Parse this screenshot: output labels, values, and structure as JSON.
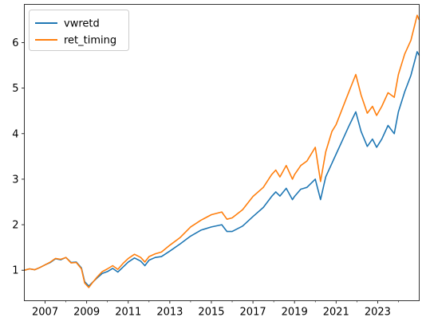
{
  "chart_data": {
    "type": "line",
    "title": "",
    "xlabel": "",
    "ylabel": "",
    "grid": false,
    "legend_position": "top-left",
    "xlim": [
      2006.0,
      2025.0
    ],
    "ylim": [
      0.33,
      6.84
    ],
    "x_ticks": [
      2007,
      2009,
      2011,
      2013,
      2015,
      2017,
      2019,
      2021,
      2023
    ],
    "x_minor_ticks": [
      2008,
      2010,
      2012,
      2014,
      2016,
      2018,
      2020,
      2022,
      2024
    ],
    "y_ticks": [
      1,
      2,
      3,
      4,
      5,
      6
    ],
    "series": [
      {
        "name": "vwretd",
        "color": "#1f77b4",
        "points": [
          [
            2006.0,
            1.0
          ],
          [
            2006.25,
            1.03
          ],
          [
            2006.5,
            1.01
          ],
          [
            2006.75,
            1.06
          ],
          [
            2007.0,
            1.12
          ],
          [
            2007.25,
            1.17
          ],
          [
            2007.5,
            1.25
          ],
          [
            2007.75,
            1.23
          ],
          [
            2008.0,
            1.28
          ],
          [
            2008.25,
            1.17
          ],
          [
            2008.5,
            1.18
          ],
          [
            2008.75,
            1.05
          ],
          [
            2008.9,
            0.75
          ],
          [
            2009.1,
            0.65
          ],
          [
            2009.25,
            0.72
          ],
          [
            2009.5,
            0.83
          ],
          [
            2009.75,
            0.93
          ],
          [
            2010.0,
            0.97
          ],
          [
            2010.25,
            1.04
          ],
          [
            2010.5,
            0.96
          ],
          [
            2010.75,
            1.07
          ],
          [
            2011.0,
            1.18
          ],
          [
            2011.3,
            1.27
          ],
          [
            2011.6,
            1.2
          ],
          [
            2011.8,
            1.1
          ],
          [
            2012.0,
            1.22
          ],
          [
            2012.3,
            1.28
          ],
          [
            2012.6,
            1.3
          ],
          [
            2013.0,
            1.42
          ],
          [
            2013.5,
            1.58
          ],
          [
            2014.0,
            1.75
          ],
          [
            2014.5,
            1.88
          ],
          [
            2015.0,
            1.95
          ],
          [
            2015.5,
            2.0
          ],
          [
            2015.75,
            1.85
          ],
          [
            2016.0,
            1.85
          ],
          [
            2016.5,
            1.97
          ],
          [
            2017.0,
            2.18
          ],
          [
            2017.5,
            2.38
          ],
          [
            2017.9,
            2.62
          ],
          [
            2018.1,
            2.72
          ],
          [
            2018.3,
            2.63
          ],
          [
            2018.6,
            2.8
          ],
          [
            2018.9,
            2.55
          ],
          [
            2019.0,
            2.62
          ],
          [
            2019.3,
            2.78
          ],
          [
            2019.6,
            2.82
          ],
          [
            2020.0,
            3.0
          ],
          [
            2020.25,
            2.55
          ],
          [
            2020.5,
            3.05
          ],
          [
            2020.8,
            3.35
          ],
          [
            2021.0,
            3.55
          ],
          [
            2021.3,
            3.85
          ],
          [
            2021.6,
            4.15
          ],
          [
            2021.95,
            4.48
          ],
          [
            2022.2,
            4.05
          ],
          [
            2022.5,
            3.72
          ],
          [
            2022.75,
            3.88
          ],
          [
            2022.95,
            3.7
          ],
          [
            2023.2,
            3.88
          ],
          [
            2023.5,
            4.18
          ],
          [
            2023.8,
            4.0
          ],
          [
            2024.0,
            4.48
          ],
          [
            2024.3,
            4.92
          ],
          [
            2024.6,
            5.28
          ],
          [
            2024.9,
            5.8
          ],
          [
            2025.0,
            5.72
          ]
        ]
      },
      {
        "name": "ret_timing",
        "color": "#ff7f0e",
        "points": [
          [
            2006.0,
            1.0
          ],
          [
            2006.25,
            1.03
          ],
          [
            2006.5,
            1.01
          ],
          [
            2006.75,
            1.06
          ],
          [
            2007.0,
            1.12
          ],
          [
            2007.25,
            1.18
          ],
          [
            2007.5,
            1.26
          ],
          [
            2007.75,
            1.24
          ],
          [
            2008.0,
            1.28
          ],
          [
            2008.25,
            1.16
          ],
          [
            2008.5,
            1.17
          ],
          [
            2008.75,
            1.03
          ],
          [
            2008.9,
            0.72
          ],
          [
            2009.1,
            0.62
          ],
          [
            2009.25,
            0.71
          ],
          [
            2009.5,
            0.85
          ],
          [
            2009.75,
            0.97
          ],
          [
            2010.0,
            1.03
          ],
          [
            2010.25,
            1.1
          ],
          [
            2010.5,
            1.02
          ],
          [
            2010.75,
            1.15
          ],
          [
            2011.0,
            1.26
          ],
          [
            2011.3,
            1.35
          ],
          [
            2011.6,
            1.28
          ],
          [
            2011.8,
            1.18
          ],
          [
            2012.0,
            1.3
          ],
          [
            2012.3,
            1.36
          ],
          [
            2012.6,
            1.4
          ],
          [
            2013.0,
            1.55
          ],
          [
            2013.5,
            1.72
          ],
          [
            2014.0,
            1.95
          ],
          [
            2014.5,
            2.1
          ],
          [
            2015.0,
            2.22
          ],
          [
            2015.5,
            2.28
          ],
          [
            2015.75,
            2.12
          ],
          [
            2016.0,
            2.15
          ],
          [
            2016.5,
            2.33
          ],
          [
            2017.0,
            2.62
          ],
          [
            2017.5,
            2.82
          ],
          [
            2017.9,
            3.1
          ],
          [
            2018.1,
            3.2
          ],
          [
            2018.3,
            3.05
          ],
          [
            2018.6,
            3.3
          ],
          [
            2018.9,
            3.0
          ],
          [
            2019.0,
            3.1
          ],
          [
            2019.3,
            3.3
          ],
          [
            2019.6,
            3.4
          ],
          [
            2020.0,
            3.7
          ],
          [
            2020.25,
            2.95
          ],
          [
            2020.5,
            3.6
          ],
          [
            2020.8,
            4.05
          ],
          [
            2021.0,
            4.2
          ],
          [
            2021.3,
            4.55
          ],
          [
            2021.6,
            4.9
          ],
          [
            2021.95,
            5.3
          ],
          [
            2022.2,
            4.85
          ],
          [
            2022.5,
            4.45
          ],
          [
            2022.75,
            4.6
          ],
          [
            2022.95,
            4.4
          ],
          [
            2023.2,
            4.6
          ],
          [
            2023.5,
            4.9
          ],
          [
            2023.8,
            4.8
          ],
          [
            2024.0,
            5.3
          ],
          [
            2024.3,
            5.75
          ],
          [
            2024.6,
            6.05
          ],
          [
            2024.9,
            6.6
          ],
          [
            2025.0,
            6.5
          ]
        ]
      }
    ]
  }
}
